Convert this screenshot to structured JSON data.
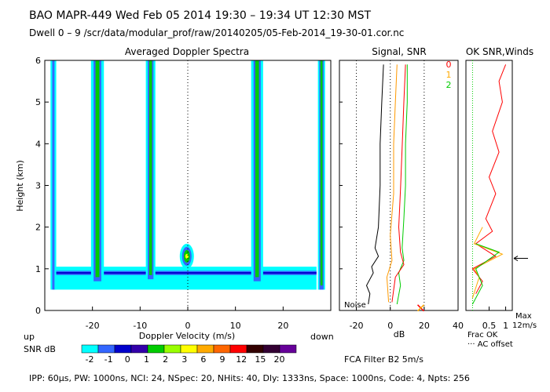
{
  "header": {
    "line1": "BAO   MAPR-449   Wed Feb 05 2014 19:30 – 19:34 UT 12:30 MST",
    "line2": "Dwell   0 –   9    /scr/data/modular_prof/raw/20140205/05-Feb-2014_19-30-01.cor.nc"
  },
  "footer": {
    "params": "IPP:  60µs,  PW: 1000ns,  NCI:  24,  NSpec: 20, NHits: 40,  Dly: 1333ns,  Space: 1000ns,  Code: 4,  Npts: 256",
    "filter": "FCA Filter B2   5m/s"
  },
  "colors": {
    "snr_scale": [
      "#00ffff",
      "#3366ff",
      "#0000cc",
      "#3300aa",
      "#00cc00",
      "#99ff00",
      "#ffff00",
      "#ffaa00",
      "#ff6600",
      "#ff0000",
      "#330000",
      "#330033",
      "#660099"
    ],
    "c_noise": "#000000",
    "c_signal": "#ff9900",
    "c_snr": "#00cc00",
    "c_red": "#ff0000",
    "c_ok_orange": "#ffaa00",
    "c_ok_green": "#00cc00"
  },
  "chart_data": [
    {
      "type": "heatmap",
      "title": "Averaged Doppler Spectra",
      "xlabel": "Doppler Velocity (m/s)",
      "ylabel": "Height (km)",
      "xlabel_left": "up",
      "xlabel_right": "down",
      "xlim": [
        -30,
        30
      ],
      "ylim": [
        0,
        6
      ],
      "xticks": [
        -20,
        -10,
        0,
        10,
        20
      ],
      "yticks": [
        0,
        1,
        2,
        3,
        4,
        5,
        6
      ],
      "colorbar_label": "SNR dB",
      "colorbar_ticks": [
        -2,
        -1,
        0,
        1,
        2,
        3,
        6,
        9,
        12,
        15,
        20
      ],
      "ground_band": {
        "y0": 0.5,
        "y1": 1.05,
        "x0": -28,
        "x1": 27
      },
      "columns": [
        {
          "x0": -28.8,
          "x1": -27.6,
          "y0": 0.5,
          "y1": 6
        },
        {
          "x0": -20.3,
          "x1": -17.6,
          "y0": 0.7,
          "y1": 6
        },
        {
          "x0": -8.8,
          "x1": -6.8,
          "y0": 0.75,
          "y1": 6
        },
        {
          "x0": 13.3,
          "x1": 15.8,
          "y0": 0.7,
          "y1": 6
        },
        {
          "x0": 27.3,
          "x1": 28.8,
          "y0": 0.5,
          "y1": 6
        }
      ],
      "blob": {
        "x": -0.2,
        "y": 1.3
      },
      "zero_line": 0
    },
    {
      "type": "line",
      "title": "Signal, SNR",
      "xlabel": "dB",
      "xlim": [
        -30,
        40
      ],
      "ylim": [
        0,
        6
      ],
      "xticks": [
        -20,
        0,
        20,
        40
      ],
      "annotations": [
        "Noise"
      ],
      "series": [
        {
          "key": "noise",
          "points": [
            [
              -13,
              0.15
            ],
            [
              -12,
              0.4
            ],
            [
              -14,
              0.6
            ],
            [
              -10,
              0.9
            ],
            [
              -11,
              1.05
            ],
            [
              -7,
              1.3
            ],
            [
              -9,
              1.5
            ],
            [
              -7,
              2
            ],
            [
              -6,
              3
            ],
            [
              -6,
              4
            ],
            [
              -5,
              5
            ],
            [
              -4,
              5.9
            ]
          ]
        },
        {
          "key": "signal",
          "points": [
            [
              -1,
              0.2
            ],
            [
              -2,
              0.8
            ],
            [
              1,
              1.2
            ],
            [
              0,
              1.8
            ],
            [
              2,
              2.8
            ],
            [
              2,
              4
            ],
            [
              3,
              5
            ],
            [
              4,
              5.9
            ]
          ]
        },
        {
          "key": "snr",
          "points": [
            [
              4,
              0.15
            ],
            [
              6,
              0.6
            ],
            [
              5,
              0.9
            ],
            [
              8,
              1.2
            ],
            [
              7,
              1.5
            ],
            [
              8,
              2.2
            ],
            [
              9,
              3
            ],
            [
              9,
              4
            ],
            [
              10,
              5
            ],
            [
              10,
              5.9
            ]
          ]
        },
        {
          "key": "red",
          "points": [
            [
              1,
              0.2
            ],
            [
              3,
              0.8
            ],
            [
              8,
              1.1
            ],
            [
              6,
              1.4
            ],
            [
              5,
              2.0
            ],
            [
              6,
              2.9
            ],
            [
              7,
              3.9
            ],
            [
              8,
              5
            ],
            [
              9,
              5.9
            ]
          ]
        }
      ],
      "markers": [
        {
          "x": 18,
          "y": 0.06
        }
      ]
    },
    {
      "type": "line",
      "title": "OK SNR,Winds",
      "legend": [
        "0",
        "1",
        "2"
      ],
      "xlim": [
        -0.2,
        1.2
      ],
      "ylim": [
        0,
        6
      ],
      "xticks": [
        0.5,
        1
      ],
      "xtick_labels": [
        "0.5",
        "1"
      ],
      "bottom_labels": [
        "Frac OK",
        "··· AC offset"
      ],
      "max_label": "Max",
      "max_value": "12m/s",
      "series": [
        {
          "key": "red",
          "points": [
            [
              0.1,
              0.4
            ],
            [
              0.3,
              0.7
            ],
            [
              0.0,
              1.0
            ],
            [
              0.7,
              1.3
            ],
            [
              0.1,
              1.6
            ],
            [
              0.6,
              1.9
            ],
            [
              0.4,
              2.2
            ],
            [
              0.7,
              2.8
            ],
            [
              0.5,
              3.2
            ],
            [
              0.8,
              3.8
            ],
            [
              0.6,
              4.3
            ],
            [
              0.9,
              5.0
            ],
            [
              0.8,
              5.5
            ],
            [
              1.0,
              5.9
            ]
          ]
        },
        {
          "key": "orange",
          "points": [
            [
              0.0,
              0.3
            ],
            [
              0.2,
              0.8
            ],
            [
              0.05,
              1.0
            ],
            [
              0.9,
              1.35
            ],
            [
              0.05,
              1.6
            ],
            [
              0.3,
              2.0
            ]
          ]
        },
        {
          "key": "green",
          "points": [
            [
              0.0,
              0.15
            ],
            [
              0.3,
              0.6
            ],
            [
              0.1,
              1.0
            ],
            [
              0.8,
              1.4
            ],
            [
              0.1,
              1.6
            ]
          ]
        }
      ],
      "arrow_height": 1.25
    }
  ]
}
